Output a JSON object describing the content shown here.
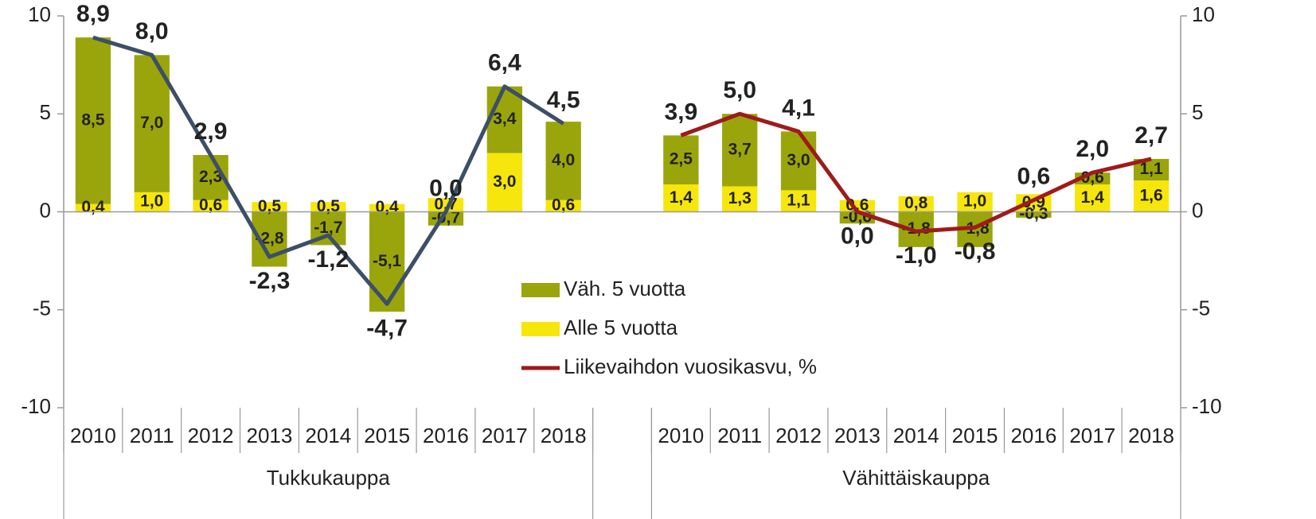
{
  "chart_data": {
    "type": "bar",
    "stacked": true,
    "categories": [
      "2010",
      "2011",
      "2012",
      "2013",
      "2014",
      "2015",
      "2016",
      "2017",
      "2018",
      null,
      "2010",
      "2011",
      "2012",
      "2013",
      "2014",
      "2015",
      "2016",
      "2017",
      "2018"
    ],
    "groups": [
      "Tukkukauppa",
      "Vähittäiskauppa"
    ],
    "series": [
      {
        "name": "Väh. 5 vuotta",
        "color": "#9aa50c",
        "type": "bar",
        "values": [
          8.5,
          7.0,
          2.3,
          -2.8,
          -1.7,
          -5.1,
          -0.7,
          3.4,
          4.0,
          null,
          2.5,
          3.7,
          3.0,
          -0.6,
          -1.8,
          -1.8,
          -0.3,
          0.6,
          1.1
        ],
        "value_labels": [
          "8,5",
          "7,0",
          "2,3",
          "-2,8",
          "-1,7",
          "-5,1",
          "-0,7",
          "3,4",
          "4,0",
          null,
          "2,5",
          "3,7",
          "3,0",
          "-0,6",
          "-1,8",
          "-1,8",
          "-0,3",
          "0,6",
          "1,1"
        ]
      },
      {
        "name": "Alle 5 vuotta",
        "color": "#f6e60c",
        "type": "bar",
        "values": [
          0.4,
          1.0,
          0.6,
          0.5,
          0.5,
          0.4,
          0.7,
          3.0,
          0.6,
          null,
          1.4,
          1.3,
          1.1,
          0.6,
          0.8,
          1.0,
          0.9,
          1.4,
          1.6
        ],
        "value_labels": [
          "0,4",
          "1,0",
          "0,6",
          "0,5",
          "0,5",
          "0,4",
          "0,7",
          "3,0",
          "0,6",
          null,
          "1,4",
          "1,3",
          "1,1",
          "0,6",
          "0,8",
          "1,0",
          "0,9",
          "1,4",
          "1,6"
        ]
      },
      {
        "name": "Liikevaihdon vuosikasvu, %",
        "color": "#9e1b1b",
        "group_colors": [
          "#3d4f66",
          "#9e1b1b"
        ],
        "type": "line",
        "values": [
          8.9,
          8.0,
          2.9,
          -2.3,
          -1.2,
          -4.7,
          0.0,
          6.4,
          4.5,
          null,
          3.9,
          5.0,
          4.1,
          0.0,
          -1.0,
          -0.8,
          0.6,
          2.0,
          2.7
        ],
        "value_labels": [
          "8,9",
          "8,0",
          "2,9",
          "-2,3",
          "-1,2",
          "-4,7",
          "0,0",
          "6,4",
          "4,5",
          null,
          "3,9",
          "5,0",
          "4,1",
          "0,0",
          "-1,0",
          "-0,8",
          "0,6",
          "2,0",
          "2,7"
        ]
      }
    ],
    "ylim": [
      -10,
      10
    ],
    "yticks": [
      -10,
      -5,
      0,
      5,
      10
    ],
    "y2lim": [
      -10,
      10
    ],
    "y2ticks": [
      -10,
      -5,
      0,
      5,
      10
    ],
    "legend": "center"
  }
}
